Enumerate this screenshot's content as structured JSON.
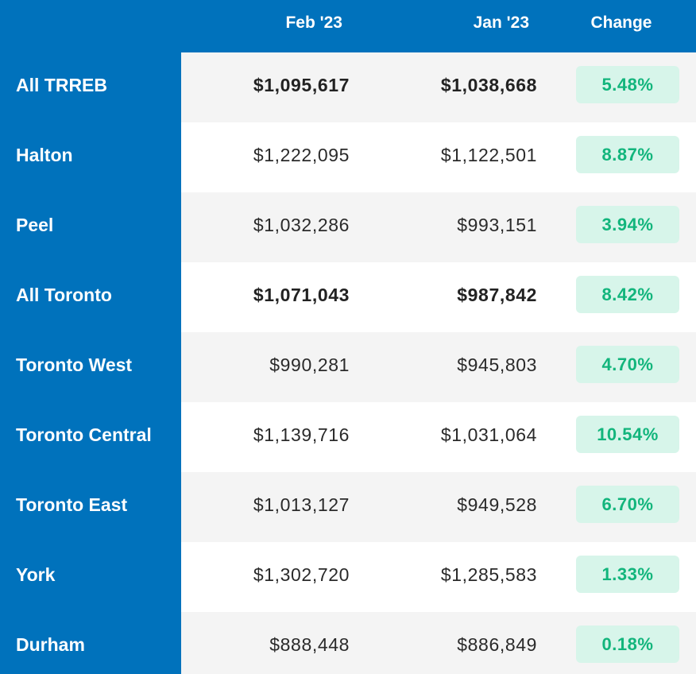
{
  "chart_data": {
    "type": "table",
    "columns": [
      "",
      "Feb '23",
      "Jan '23",
      "Change"
    ],
    "rows": [
      {
        "region": "All TRREB",
        "feb": "$1,095,617",
        "jan": "$1,038,668",
        "change": "5.48%",
        "bold": true
      },
      {
        "region": "Halton",
        "feb": "$1,222,095",
        "jan": "$1,122,501",
        "change": "8.87%",
        "bold": false
      },
      {
        "region": "Peel",
        "feb": "$1,032,286",
        "jan": "$993,151",
        "change": "3.94%",
        "bold": false
      },
      {
        "region": "All Toronto",
        "feb": "$1,071,043",
        "jan": "$987,842",
        "change": "8.42%",
        "bold": true
      },
      {
        "region": "Toronto West",
        "feb": "$990,281",
        "jan": "$945,803",
        "change": "4.70%",
        "bold": false
      },
      {
        "region": "Toronto Central",
        "feb": "$1,139,716",
        "jan": "$1,031,064",
        "change": "10.54%",
        "bold": false
      },
      {
        "region": "Toronto East",
        "feb": "$1,013,127",
        "jan": "$949,528",
        "change": "6.70%",
        "bold": false
      },
      {
        "region": "York",
        "feb": "$1,302,720",
        "jan": "$1,285,583",
        "change": "1.33%",
        "bold": false
      },
      {
        "region": "Durham",
        "feb": "$888,448",
        "jan": "$886,849",
        "change": "0.18%",
        "bold": false
      }
    ],
    "colors": {
      "header_bg": "#0072bc",
      "badge_bg": "#d7f5ea",
      "badge_text": "#12b57c",
      "stripe_bg": "#f4f4f4"
    }
  }
}
